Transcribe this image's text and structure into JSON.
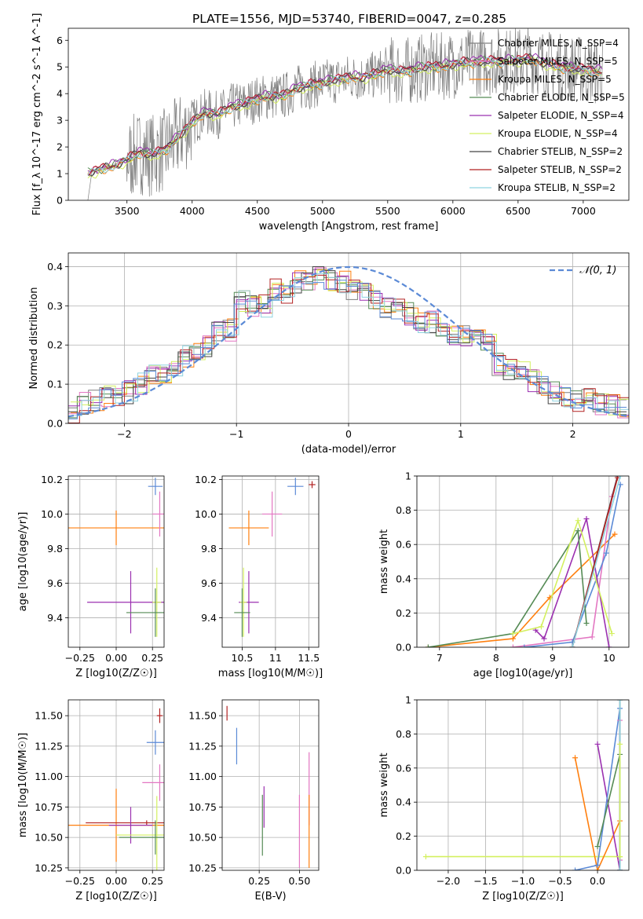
{
  "figure_title": "PLATE=1556, MJD=53740, FIBERID=0047, z=0.285",
  "chart_data": [
    {
      "id": "spectrum",
      "type": "line",
      "xlabel": "wavelength [Angstrom, rest frame]",
      "ylabel": "Flux [f_λ 10^-17 erg cm^-2 s^-1 A^-1]",
      "xlim": [
        3050,
        7350
      ],
      "ylim": [
        0,
        6.45
      ],
      "xticks": [
        3500,
        4000,
        4500,
        5000,
        5500,
        6000,
        6500,
        7000
      ],
      "yticks": [
        0,
        1,
        2,
        3,
        4,
        5,
        6
      ],
      "grid": false,
      "legend_position": "upper right",
      "legend": [
        {
          "label": "Chabrier MILES, N_SSP=4",
          "color": "#808080"
        },
        {
          "label": "Salpeter MILES, N_SSP=5",
          "color": "#e377c2"
        },
        {
          "label": "Kroupa MILES, N_SSP=5",
          "color": "#ff7f0e"
        },
        {
          "label": "Chabrier ELODIE, N_SSP=5",
          "color": "#558b55"
        },
        {
          "label": "Salpeter ELODIE, N_SSP=4",
          "color": "#9b30b0"
        },
        {
          "label": "Kroupa ELODIE, N_SSP=4",
          "color": "#d4f060"
        },
        {
          "label": "Chabrier STELIB, N_SSP=2",
          "color": "#444444"
        },
        {
          "label": "Salpeter STELIB, N_SSP=2",
          "color": "#b22222"
        },
        {
          "label": "Kroupa STELIB, N_SSP=2",
          "color": "#8fd3e0"
        }
      ],
      "data_envelope": {
        "x": [
          3200,
          3300,
          3400,
          3500,
          3600,
          3700,
          3800,
          3900,
          4000,
          4100,
          4200,
          4300,
          4400,
          4500,
          4600,
          4700,
          4800,
          4900,
          5000,
          5100,
          5200,
          5300,
          5400,
          5500,
          5600,
          5700,
          5800,
          5900,
          6000,
          6200,
          6400,
          6600,
          6800,
          7000,
          7150
        ],
        "y": [
          1.0,
          1.15,
          1.3,
          1.5,
          1.8,
          1.7,
          1.9,
          2.4,
          2.9,
          3.3,
          3.2,
          3.5,
          3.6,
          3.8,
          3.9,
          3.9,
          4.2,
          4.3,
          4.4,
          4.5,
          4.6,
          4.6,
          4.7,
          4.9,
          4.8,
          4.9,
          5.0,
          5.0,
          5.1,
          5.2,
          5.2,
          5.3,
          5.0,
          4.9,
          4.8
        ]
      }
    },
    {
      "id": "residuals",
      "type": "histogram",
      "xlabel": "(data-model)/error",
      "ylabel": "Normed distribution",
      "xlim": [
        -2.5,
        2.5
      ],
      "ylim": [
        0,
        0.435
      ],
      "xticks": [
        -2,
        -1,
        0,
        1,
        2
      ],
      "yticks": [
        0.0,
        0.1,
        0.2,
        0.3,
        0.4
      ],
      "grid": true,
      "legend_position": "upper right",
      "legend": [
        {
          "label": "N(0,1)",
          "color": "#5b8ad6"
        }
      ],
      "bins_start": -2.5,
      "bin_width": 0.1,
      "hist_base": [
        0.03,
        0.04,
        0.06,
        0.06,
        0.07,
        0.07,
        0.07,
        0.08,
        0.1,
        0.12,
        0.13,
        0.13,
        0.14,
        0.17,
        0.19,
        0.18,
        0.2,
        0.21,
        0.25,
        0.23,
        0.3,
        0.32,
        0.31,
        0.28,
        0.3,
        0.34,
        0.34,
        0.33,
        0.37,
        0.36,
        0.37,
        0.38,
        0.37,
        0.36,
        0.37,
        0.35,
        0.36,
        0.33,
        0.36,
        0.31,
        0.28,
        0.3,
        0.28,
        0.32,
        0.3,
        0.25,
        0.27,
        0.22,
        0.23,
        0.2,
        0.21,
        0.17,
        0.16,
        0.14,
        0.15,
        0.11,
        0.12,
        0.09,
        0.08,
        0.08,
        0.06,
        0.06,
        0.05,
        0.06,
        0.05,
        0.05,
        0.04,
        0.04,
        0.05,
        0.04,
        0.04,
        0.03,
        0.03,
        0.04,
        0.03,
        0.03,
        0.04,
        0.03,
        0.03,
        0.03,
        0.03,
        0.03,
        0.04,
        0.04,
        0.05,
        0.05,
        0.06,
        0.06,
        0.07,
        0.06,
        0.06,
        0.05,
        0.06,
        0.06,
        0.05,
        0.05,
        0.06,
        0.06,
        0.07,
        0.07
      ],
      "hist_range": [
        -2.5,
        2.5
      ],
      "hist_bins": 50,
      "hist_values": [
        0.03,
        0.05,
        0.06,
        0.07,
        0.07,
        0.08,
        0.1,
        0.12,
        0.13,
        0.14,
        0.17,
        0.18,
        0.2,
        0.23,
        0.24,
        0.31,
        0.3,
        0.3,
        0.34,
        0.33,
        0.36,
        0.37,
        0.37,
        0.36,
        0.36,
        0.34,
        0.34,
        0.32,
        0.3,
        0.29,
        0.28,
        0.26,
        0.26,
        0.24,
        0.23,
        0.22,
        0.21,
        0.2,
        0.15,
        0.14,
        0.13,
        0.11,
        0.1,
        0.08,
        0.07,
        0.06,
        0.06,
        0.05,
        0.05,
        0.04
      ],
      "gaussian": {
        "mu": 0,
        "sigma": 1
      }
    },
    {
      "id": "age_vs_Z",
      "type": "errorbar",
      "xlabel": "Z [log10(Z/Z☉)]",
      "ylabel": "age  [log10(age/yr)]",
      "xlim": [
        -0.33,
        0.33
      ],
      "ylim": [
        9.23,
        10.22
      ],
      "xticks": [
        -0.25,
        0.0,
        0.25
      ],
      "xticklabels": [
        "−0.25",
        "0.00",
        "0.25"
      ],
      "yticks": [
        9.4,
        9.6,
        9.8,
        10.0,
        10.2
      ],
      "grid": true,
      "points": [
        {
          "x": 0.0,
          "y": 9.92,
          "xerr": 0.33,
          "yerr": 0.1,
          "color": "#ff7f0e"
        },
        {
          "x": 0.3,
          "y": 10.0,
          "xerr": 0.05,
          "yerr": 0.13,
          "color": "#e377c2"
        },
        {
          "x": 0.27,
          "y": 10.16,
          "xerr": 0.05,
          "yerr": 0.05,
          "color": "#5b8ad6"
        },
        {
          "x": 0.1,
          "y": 9.49,
          "xerr": 0.3,
          "yerr": 0.18,
          "color": "#9b30b0"
        },
        {
          "x": 0.28,
          "y": 9.49,
          "xerr": 0.03,
          "yerr": 0.2,
          "color": "#d4f060"
        },
        {
          "x": 0.27,
          "y": 9.43,
          "xerr": 0.2,
          "yerr": 0.14,
          "color": "#558b55"
        }
      ]
    },
    {
      "id": "age_vs_mass",
      "type": "errorbar",
      "xlabel": "mass [log10(M/M☉)]",
      "ylabel": "",
      "xlim": [
        10.2,
        11.65
      ],
      "ylim": [
        9.23,
        10.22
      ],
      "xticks": [
        10.5,
        11.0,
        11.5
      ],
      "yticks": [
        9.4,
        9.6,
        9.8,
        10.0,
        10.2
      ],
      "grid": true,
      "points": [
        {
          "x": 10.6,
          "y": 9.92,
          "xerr": 0.3,
          "yerr": 0.1,
          "color": "#ff7f0e"
        },
        {
          "x": 10.95,
          "y": 10.0,
          "xerr": 0.15,
          "yerr": 0.13,
          "color": "#e377c2"
        },
        {
          "x": 11.3,
          "y": 10.16,
          "xerr": 0.12,
          "yerr": 0.05,
          "color": "#5b8ad6"
        },
        {
          "x": 10.6,
          "y": 9.49,
          "xerr": 0.15,
          "yerr": 0.18,
          "color": "#9b30b0"
        },
        {
          "x": 10.52,
          "y": 9.49,
          "xerr": 0.05,
          "yerr": 0.2,
          "color": "#d4f060"
        },
        {
          "x": 10.5,
          "y": 9.43,
          "xerr": 0.12,
          "yerr": 0.14,
          "color": "#558b55"
        },
        {
          "x": 11.55,
          "y": 10.17,
          "xerr": 0.05,
          "yerr": 0.02,
          "color": "#b22222"
        }
      ]
    },
    {
      "id": "massweight_vs_age",
      "type": "line",
      "xlabel": "age  [log10(age/yr)]",
      "ylabel": "mass weight",
      "xlim": [
        6.6,
        10.35
      ],
      "ylim": [
        0,
        1.0
      ],
      "xticks": [
        7,
        8,
        9,
        10
      ],
      "yticks": [
        0.0,
        0.2,
        0.4,
        0.6,
        0.8,
        1.0
      ],
      "grid": true,
      "series": [
        {
          "color": "#ff7f0e",
          "x": [
            6.8,
            8.3,
            8.95,
            10.1
          ],
          "y": [
            0.0,
            0.05,
            0.29,
            0.66
          ]
        },
        {
          "color": "#e377c2",
          "x": [
            8.3,
            9.7,
            10.05,
            10.15
          ],
          "y": [
            0.0,
            0.06,
            0.88,
            1.0
          ]
        },
        {
          "color": "#5b8ad6",
          "x": [
            8.5,
            9.35,
            9.95,
            10.2
          ],
          "y": [
            0.0,
            0.03,
            0.55,
            0.95
          ]
        },
        {
          "color": "#9b30b0",
          "x": [
            8.7,
            8.85,
            9.6,
            10.0
          ],
          "y": [
            0.1,
            0.05,
            0.75,
            0.0
          ]
        },
        {
          "color": "#558b55",
          "x": [
            6.8,
            8.3,
            9.45,
            9.6
          ],
          "y": [
            0.0,
            0.08,
            0.68,
            0.14
          ]
        },
        {
          "color": "#d4f060",
          "x": [
            8.3,
            8.8,
            9.45,
            10.05
          ],
          "y": [
            0.08,
            0.12,
            0.74,
            0.08
          ]
        },
        {
          "color": "#444444",
          "x": [
            9.35,
            10.15
          ],
          "y": [
            0.0,
            1.0
          ]
        },
        {
          "color": "#b22222",
          "x": [
            9.35,
            10.15
          ],
          "y": [
            0.0,
            0.99
          ]
        },
        {
          "color": "#8fd3e0",
          "x": [
            9.35,
            10.2
          ],
          "y": [
            0.0,
            1.0
          ]
        }
      ]
    },
    {
      "id": "mass_vs_Z",
      "type": "errorbar",
      "xlabel": "Z [log10(Z/Z☉)]",
      "ylabel": "mass [log10(M/M☉)]",
      "xlim": [
        -0.33,
        0.33
      ],
      "ylim": [
        10.23,
        11.63
      ],
      "xticks": [
        -0.25,
        0.0,
        0.25
      ],
      "xticklabels": [
        "−0.25",
        "0.00",
        "0.25"
      ],
      "yticks": [
        10.25,
        10.5,
        10.75,
        11.0,
        11.25,
        11.5
      ],
      "grid": true,
      "points": [
        {
          "x": 0.0,
          "y": 10.6,
          "xerr": 0.33,
          "yerr": 0.3,
          "color": "#ff7f0e"
        },
        {
          "x": 0.21,
          "y": 10.62,
          "xerr": 0.42,
          "yerr": 0.02,
          "color": "#b22222"
        },
        {
          "x": 0.1,
          "y": 10.6,
          "xerr": 0.15,
          "yerr": 0.15,
          "color": "#9b30b0"
        },
        {
          "x": 0.28,
          "y": 10.52,
          "xerr": 0.28,
          "yerr": 0.32,
          "color": "#d4f060"
        },
        {
          "x": 0.27,
          "y": 10.5,
          "xerr": 0.25,
          "yerr": 0.14,
          "color": "#558b55"
        },
        {
          "x": 0.3,
          "y": 10.95,
          "xerr": 0.12,
          "yerr": 0.15,
          "color": "#e377c2"
        },
        {
          "x": 0.27,
          "y": 11.28,
          "xerr": 0.06,
          "yerr": 0.1,
          "color": "#5b8ad6"
        },
        {
          "x": 0.3,
          "y": 11.5,
          "xerr": 0.02,
          "yerr": 0.06,
          "color": "#b22222"
        }
      ]
    },
    {
      "id": "mass_vs_ebv",
      "type": "errorbar",
      "xlabel": "E(B-V)",
      "ylabel": "",
      "xlim": [
        0.02,
        0.62
      ],
      "ylim": [
        10.23,
        11.63
      ],
      "xticks": [
        0.25,
        0.5
      ],
      "xticklabels": [
        "0.25",
        "0.50"
      ],
      "yticks": [
        10.25,
        10.5,
        10.75,
        11.0,
        11.25,
        11.5
      ],
      "grid": true,
      "points": [
        {
          "x": 0.05,
          "y": 11.52,
          "xerr": 0.0,
          "yerr": 0.06,
          "color": "#b22222"
        },
        {
          "x": 0.11,
          "y": 11.25,
          "xerr": 0.0,
          "yerr": 0.15,
          "color": "#5b8ad6"
        },
        {
          "x": 0.27,
          "y": 10.6,
          "xerr": 0.0,
          "yerr": 0.25,
          "color": "#558b55"
        },
        {
          "x": 0.28,
          "y": 10.75,
          "xerr": 0.0,
          "yerr": 0.17,
          "color": "#9b30b0"
        },
        {
          "x": 0.5,
          "y": 10.55,
          "xerr": 0.0,
          "yerr": 0.3,
          "color": "#e377c2"
        },
        {
          "x": 0.56,
          "y": 10.9,
          "xerr": 0.0,
          "yerr": 0.3,
          "color": "#e377c2"
        },
        {
          "x": 0.56,
          "y": 10.55,
          "xerr": 0.0,
          "yerr": 0.3,
          "color": "#ff7f0e"
        }
      ]
    },
    {
      "id": "massweight_vs_Z",
      "type": "line",
      "xlabel": "Z [log10(Z/Z☉)]",
      "ylabel": "mass weight",
      "xlim": [
        -2.42,
        0.42
      ],
      "ylim": [
        0,
        1.0
      ],
      "xticks": [
        -2.0,
        -1.5,
        -1.0,
        -0.5,
        0.0
      ],
      "xticklabels": [
        "−2.0",
        "−1.5",
        "−1.0",
        "−0.5",
        "0.0"
      ],
      "yticks": [
        0.0,
        0.2,
        0.4,
        0.6,
        0.8,
        1.0
      ],
      "grid": true,
      "series": [
        {
          "color": "#d4f060",
          "x": [
            -2.3,
            0.3
          ],
          "y": [
            0.08,
            0.08
          ]
        },
        {
          "color": "#ff7f0e",
          "x": [
            -0.3,
            0.0,
            0.3
          ],
          "y": [
            0.66,
            0.0,
            0.29
          ]
        },
        {
          "color": "#9b30b0",
          "x": [
            0.0,
            0.3
          ],
          "y": [
            0.74,
            0.0
          ]
        },
        {
          "color": "#5b8ad6",
          "x": [
            -0.3,
            0.0,
            0.3,
            0.3
          ],
          "y": [
            0.0,
            0.03,
            0.95,
            0.0
          ]
        },
        {
          "color": "#e377c2",
          "x": [
            0.3,
            0.3
          ],
          "y": [
            0.06,
            0.88
          ]
        },
        {
          "color": "#558b55",
          "x": [
            0.0,
            0.3
          ],
          "y": [
            0.14,
            0.68
          ]
        },
        {
          "color": "#444444",
          "x": [
            0.3,
            0.3
          ],
          "y": [
            0.0,
            1.0
          ]
        },
        {
          "color": "#8fd3e0",
          "x": [
            0.3,
            0.3
          ],
          "y": [
            0.0,
            1.0
          ]
        },
        {
          "color": "#d4f060",
          "x": [
            0.3,
            0.3
          ],
          "y": [
            0.08,
            0.74
          ]
        }
      ]
    }
  ]
}
